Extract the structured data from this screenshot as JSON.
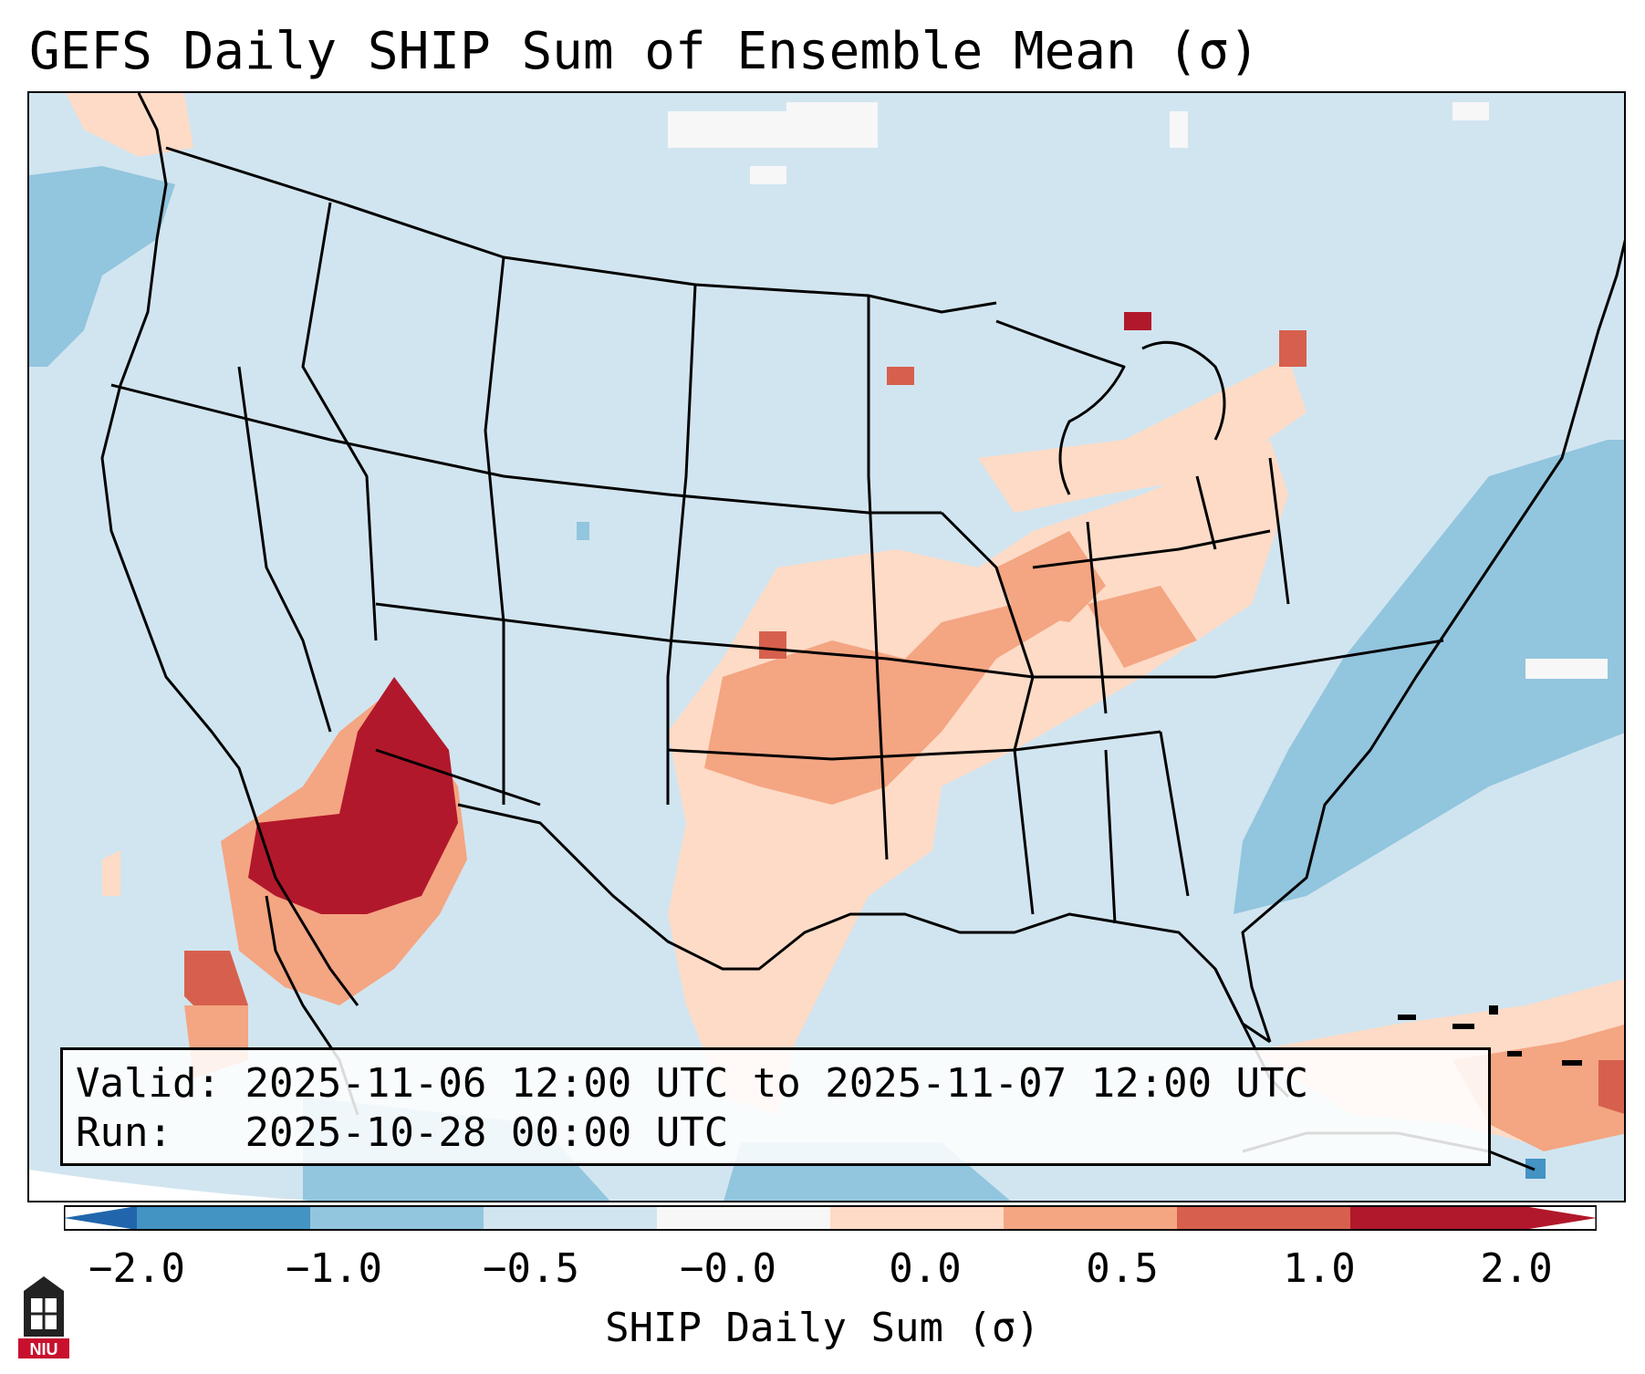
{
  "title": "GEFS Daily SHIP Sum of Ensemble Mean (σ)",
  "valid_label": "Valid:",
  "valid_value": "2025-11-06 12:00 UTC to 2025-11-07 12:00 UTC",
  "run_label": "Run:",
  "run_value": "2025-10-28 00:00 UTC",
  "colorbar": {
    "label": "SHIP Daily Sum (σ)",
    "ticks": [
      "−2.0",
      "−1.0",
      "−0.5",
      "−0.0",
      "0.0",
      "0.5",
      "1.0",
      "2.0"
    ],
    "colors": [
      "#4393c3",
      "#92c5de",
      "#d1e5f0",
      "#f7f7f7",
      "#fddbc7",
      "#f4a582",
      "#d6604d",
      "#b2182b"
    ],
    "extend_low_color": "#2166ac",
    "extend_high_color": "#b2182b"
  },
  "logo": {
    "text": "NIU",
    "color": "#c8102e"
  }
}
